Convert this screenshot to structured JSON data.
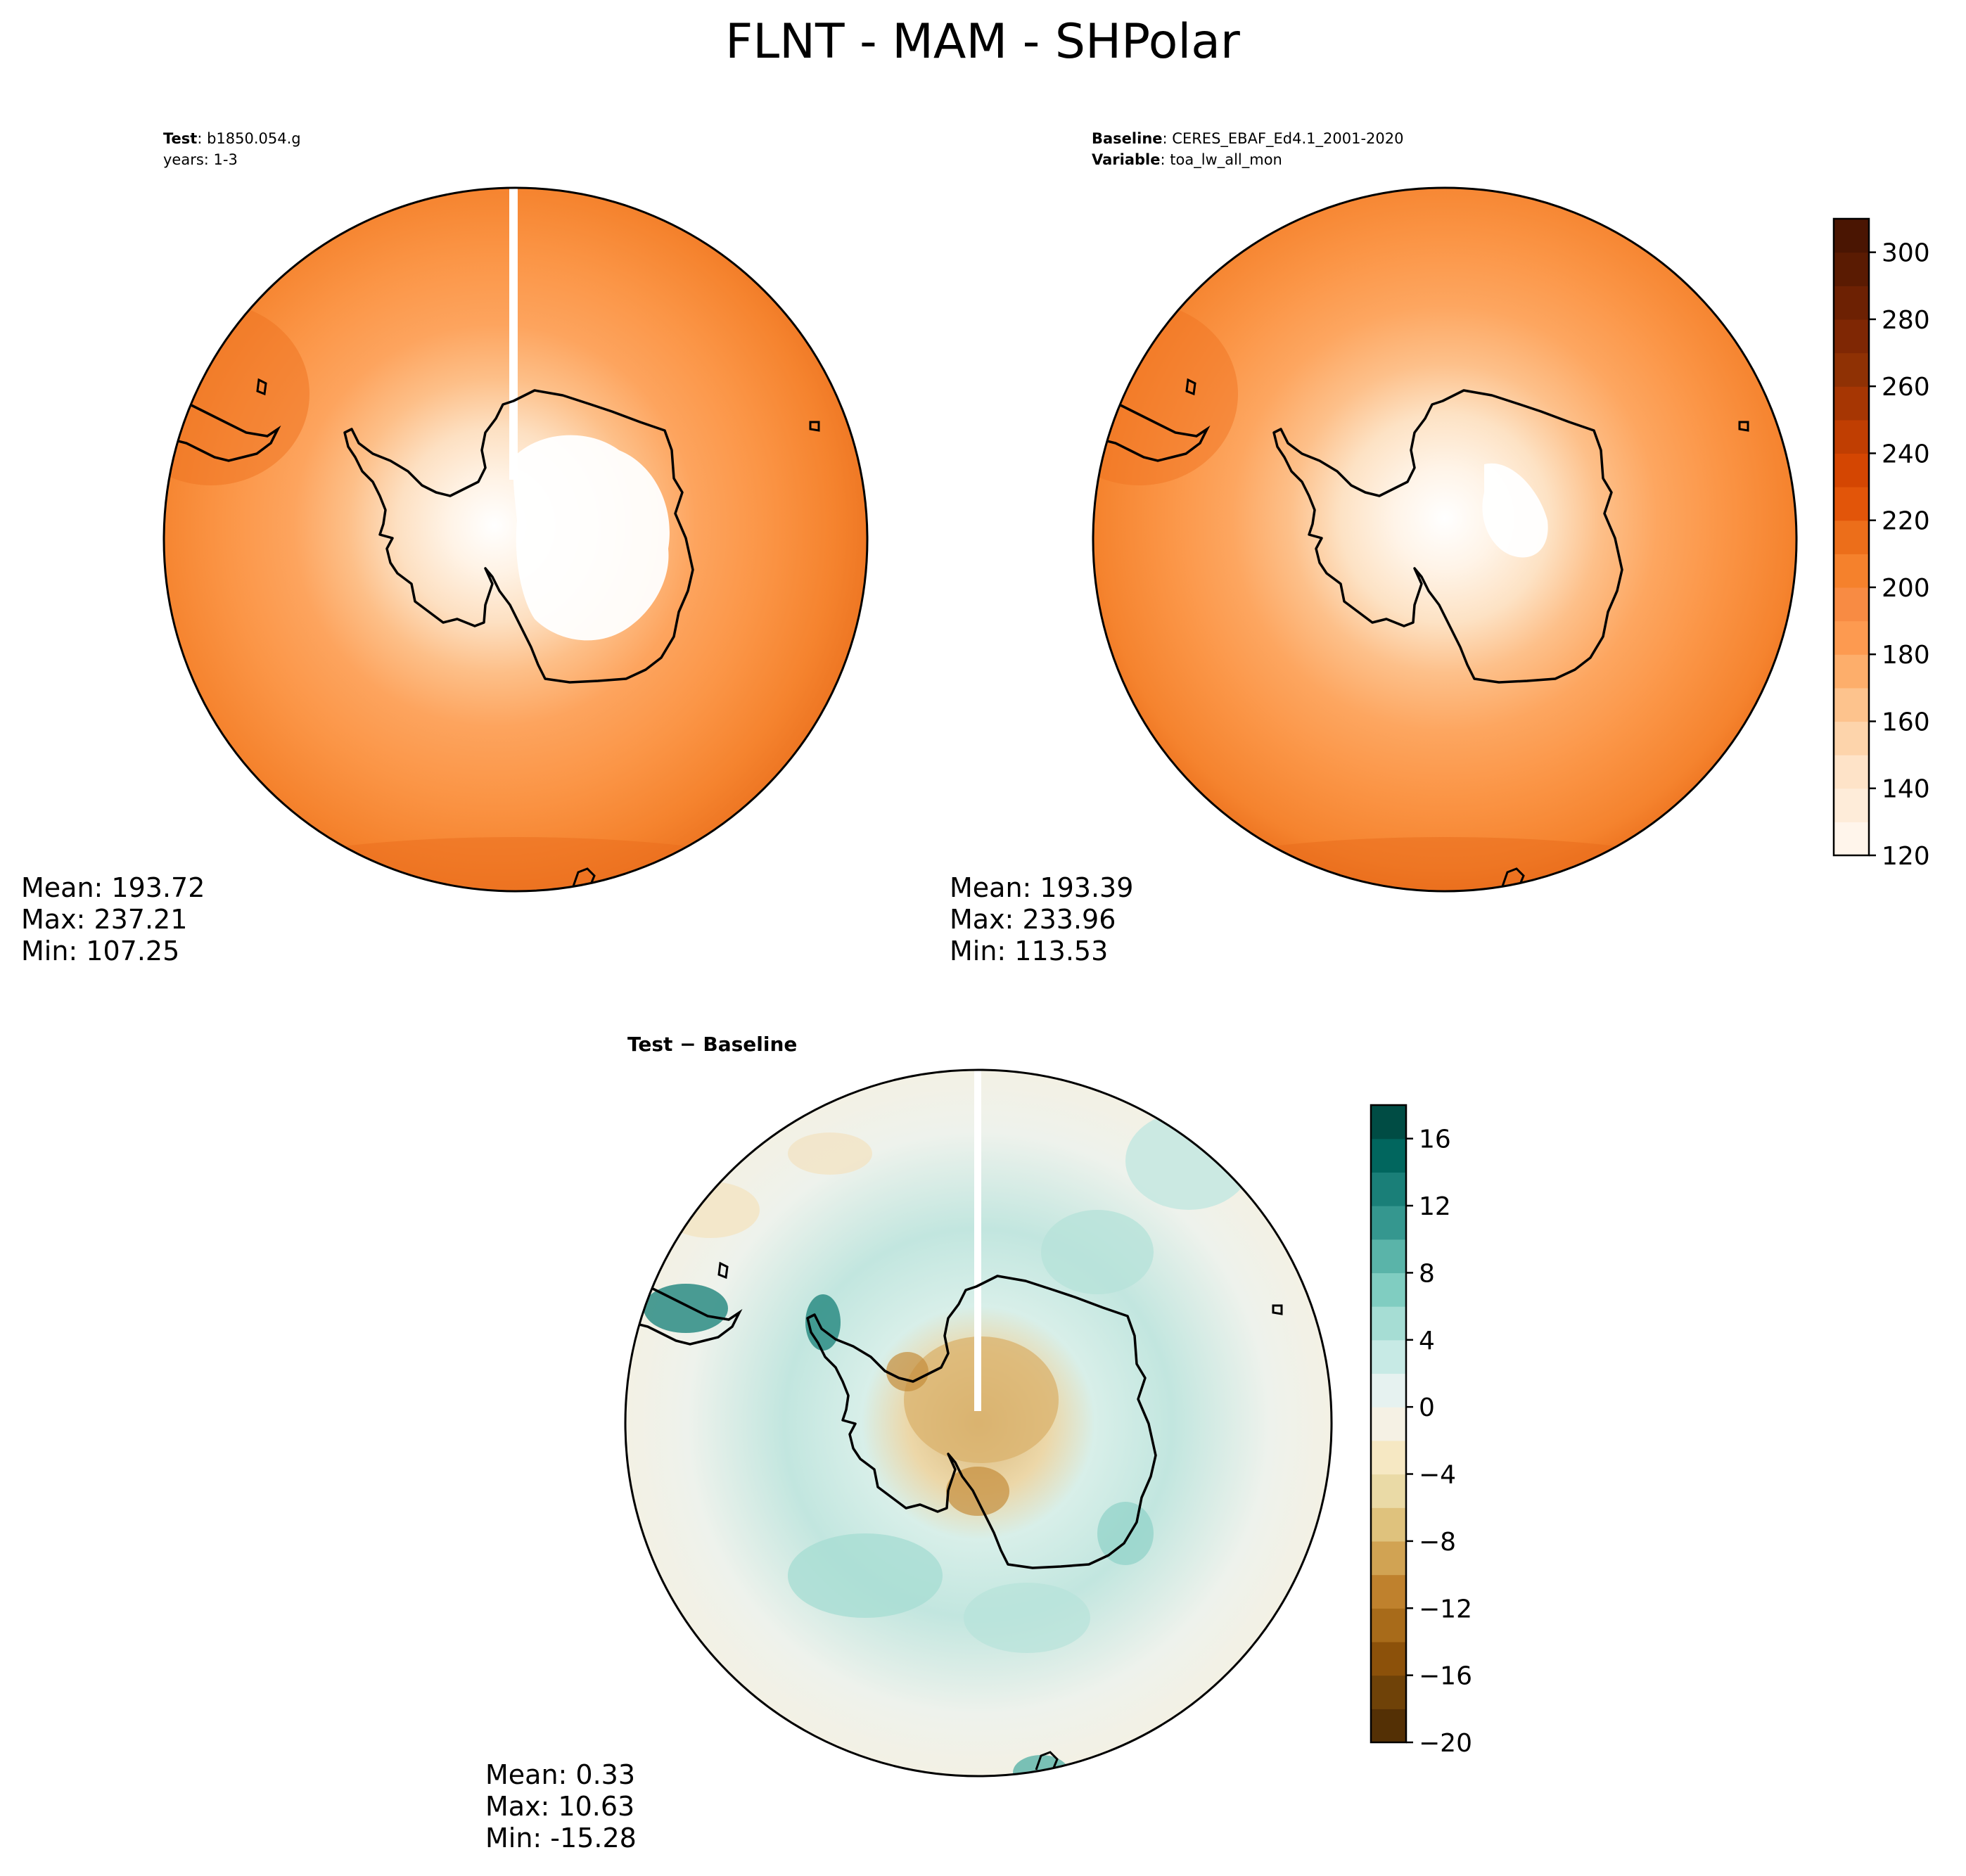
{
  "title": "FLNT - MAM - SHPolar",
  "panels": {
    "test": {
      "label_key": "Test",
      "label_val": "b1850.054.g",
      "label2": "years: 1-3",
      "stats": [
        "Mean: 193.72",
        "Max: 237.21",
        "Min: 107.25"
      ]
    },
    "baseline": {
      "label_key": "Baseline",
      "label_val": "CERES_EBAF_Ed4.1_2001-2020",
      "label2_key": "Variable",
      "label2_val": "toa_lw_all_mon",
      "stats": [
        "Mean: 193.39",
        "Max: 233.96",
        "Min: 113.53"
      ]
    },
    "diff": {
      "title": "Test − Baseline",
      "stats": [
        "Mean:  0.33",
        "Max: 10.63",
        "Min: -15.28"
      ]
    }
  },
  "colorbar_main": {
    "ticks": [
      "120",
      "140",
      "160",
      "180",
      "200",
      "220",
      "240",
      "260",
      "280",
      "300"
    ],
    "tick_values": [
      120,
      140,
      160,
      180,
      200,
      220,
      240,
      260,
      280,
      300
    ],
    "range": [
      120,
      310
    ],
    "colors": [
      "#fff5eb",
      "#feecd9",
      "#fee3c8",
      "#fdd4ab",
      "#fdc38d",
      "#fdae6b",
      "#fd9a50",
      "#f88b43",
      "#f5812c",
      "#ec6e1a",
      "#e25509",
      "#d44602",
      "#c03e02",
      "#a63603",
      "#8f3104",
      "#7f2704",
      "#6d2103",
      "#5a1b02",
      "#4a1502"
    ]
  },
  "colorbar_diff": {
    "ticks": [
      "16",
      "12",
      "8",
      "4",
      "0",
      "−4",
      "−8",
      "−12",
      "−16",
      "−20"
    ],
    "tick_values": [
      16,
      12,
      8,
      4,
      0,
      -4,
      -8,
      -12,
      -16,
      -20
    ],
    "range": [
      -20,
      18
    ],
    "colors": [
      "#543005",
      "#6f4208",
      "#8c510a",
      "#a86b1a",
      "#bf812d",
      "#d1a353",
      "#dfc27d",
      "#eadaa6",
      "#f6e8c3",
      "#f5f1e4",
      "#e6f2f0",
      "#c7eae5",
      "#a6ddd4",
      "#80cdc1",
      "#5ab4a9",
      "#35978f",
      "#1a7f78",
      "#01665e",
      "#004c44"
    ]
  }
}
